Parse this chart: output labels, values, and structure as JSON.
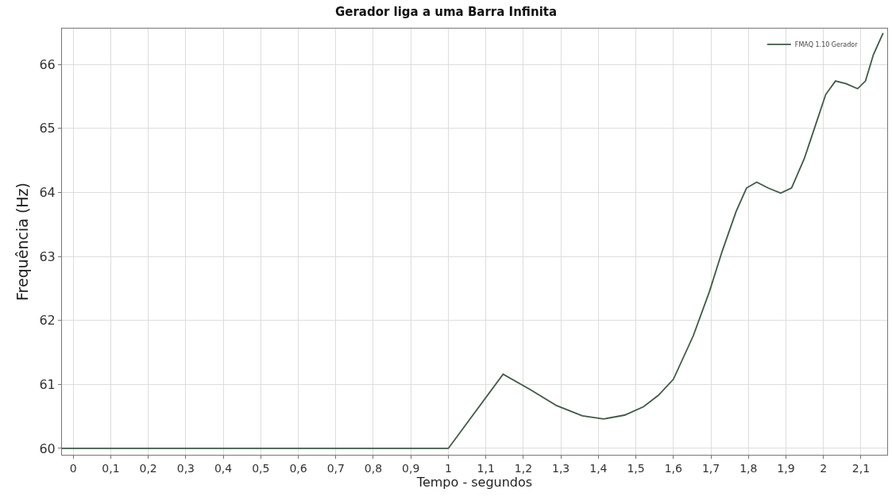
{
  "chart_data": {
    "type": "line",
    "title": "Gerador liga a uma Barra Infinita",
    "xlabel": "Tempo - segundos",
    "ylabel": "Frequência (Hz)",
    "xlim": [
      -0.03,
      2.17
    ],
    "xticks": [
      0,
      {
        "value": 0.1,
        "label": "0,1"
      },
      {
        "value": 0.2,
        "label": "0,2"
      },
      {
        "value": 0.3,
        "label": "0,3"
      },
      {
        "value": 0.4,
        "label": "0,4"
      },
      {
        "value": 0.5,
        "label": "0,5"
      },
      {
        "value": 0.6,
        "label": "0,6"
      },
      {
        "value": 0.7,
        "label": "0,7"
      },
      {
        "value": 0.8,
        "label": "0,8"
      },
      {
        "value": 0.9,
        "label": "0,9"
      },
      1,
      {
        "value": 1.1,
        "label": "1,1"
      },
      {
        "value": 1.2,
        "label": "1,2"
      },
      {
        "value": 1.3,
        "label": "1,3"
      },
      {
        "value": 1.4,
        "label": "1,4"
      },
      {
        "value": 1.5,
        "label": "1,5"
      },
      {
        "value": 1.6,
        "label": "1,6"
      },
      {
        "value": 1.7,
        "label": "1,7"
      },
      {
        "value": 1.8,
        "label": "1,8"
      },
      {
        "value": 1.9,
        "label": "1,9"
      },
      2,
      {
        "value": 2.1,
        "label": "2,1"
      }
    ],
    "ylim": [
      59.9,
      66.56
    ],
    "yticks": [
      60,
      61,
      62,
      63,
      64,
      65,
      66
    ],
    "grid": true,
    "legend": "top right",
    "line_style": "solid",
    "marker": "none",
    "series": [
      {
        "name": "FMAQ 1.10 Gerador",
        "color": "#3f5a45",
        "x": [
          -0.03,
          0.5,
          1.0,
          1.146,
          1.218,
          1.288,
          1.357,
          1.414,
          1.47,
          1.52,
          1.56,
          1.6,
          1.653,
          1.696,
          1.73,
          1.767,
          1.795,
          1.822,
          1.852,
          1.886,
          1.915,
          1.949,
          1.985,
          2.006,
          2.032,
          2.06,
          2.091,
          2.112,
          2.133,
          2.159
        ],
        "values": [
          60,
          60,
          60,
          61.16,
          60.92,
          60.67,
          60.51,
          60.46,
          60.52,
          60.65,
          60.83,
          61.08,
          61.76,
          62.45,
          63.08,
          63.7,
          64.07,
          64.16,
          64.07,
          63.99,
          64.07,
          64.53,
          65.16,
          65.53,
          65.74,
          65.7,
          65.62,
          65.74,
          66.15,
          66.49
        ]
      }
    ]
  }
}
